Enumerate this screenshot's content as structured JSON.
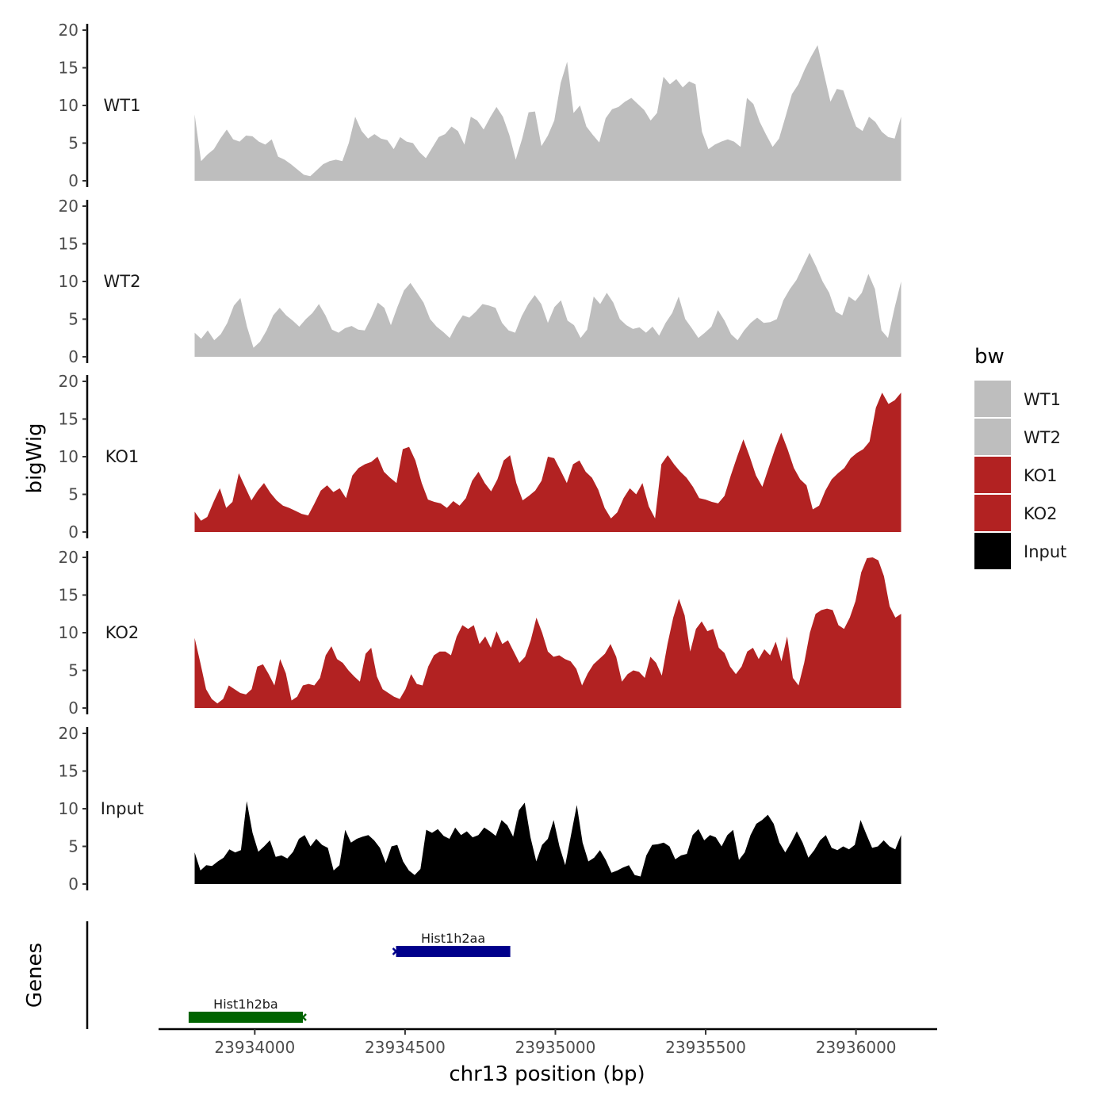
{
  "chart_data": {
    "type": "area",
    "y_title": "bigWig",
    "x_title": "chr13 position (bp)",
    "genes_title": "Genes",
    "x_range": [
      23933680,
      23936270
    ],
    "data_x_range": [
      23933800,
      23936150
    ],
    "x_ticks": [
      23934000,
      23934500,
      23935000,
      23935500,
      23936000
    ],
    "x_tick_labels": [
      "23934000",
      "23934500",
      "23935000",
      "23935500",
      "23936000"
    ],
    "y_range": [
      0,
      20
    ],
    "y_ticks": [
      0,
      5,
      10,
      15,
      20
    ],
    "y_tick_labels": [
      "0",
      "5",
      "10",
      "15",
      "20"
    ],
    "legend": {
      "title": "bw",
      "entries": [
        {
          "label": "WT1",
          "color": "#bebebe"
        },
        {
          "label": "WT2",
          "color": "#bebebe"
        },
        {
          "label": "KO1",
          "color": "#b22222"
        },
        {
          "label": "KO2",
          "color": "#b22222"
        },
        {
          "label": "Input",
          "color": "#000000"
        }
      ]
    },
    "series": [
      {
        "name": "WT1",
        "color": "#bebebe",
        "values": [
          8.8,
          2.6,
          3.5,
          4.2,
          5.6,
          6.8,
          5.5,
          5.2,
          6.0,
          5.9,
          5.2,
          4.8,
          5.5,
          3.2,
          2.8,
          2.2,
          1.5,
          0.8,
          0.6,
          1.4,
          2.2,
          2.6,
          2.8,
          2.6,
          5.0,
          8.5,
          6.6,
          5.6,
          6.2,
          5.6,
          5.4,
          4.2,
          5.8,
          5.2,
          5.0,
          3.8,
          3.0,
          4.4,
          5.8,
          6.2,
          7.2,
          6.6,
          4.8,
          8.5,
          8.0,
          6.8,
          8.4,
          9.8,
          8.5,
          6.1,
          2.8,
          5.6,
          9.1,
          9.2,
          4.6,
          6.0,
          8.0,
          13.0,
          15.8,
          9.0,
          10.0,
          7.2,
          6.1,
          5.1,
          8.3,
          9.5,
          9.8,
          10.5,
          11.0,
          10.2,
          9.4,
          8.0,
          9.0,
          13.8,
          12.8,
          13.5,
          12.4,
          13.2,
          12.8,
          6.5,
          4.2,
          4.8,
          5.2,
          5.5,
          5.2,
          4.5,
          11.0,
          10.2,
          7.8,
          6.1,
          4.5,
          5.6,
          8.5,
          11.5,
          12.8,
          14.8,
          16.5,
          18.0,
          14.2,
          10.5,
          12.2,
          12.0,
          9.5,
          7.2,
          6.6,
          8.5,
          7.8,
          6.5,
          5.8,
          5.6,
          8.5
        ]
      },
      {
        "name": "WT2",
        "color": "#bebebe",
        "values": [
          3.2,
          2.4,
          3.5,
          2.2,
          3.0,
          4.5,
          6.8,
          7.8,
          4.0,
          1.2,
          2.0,
          3.5,
          5.5,
          6.5,
          5.5,
          4.8,
          4.0,
          5.0,
          5.8,
          7.0,
          5.5,
          3.6,
          3.2,
          3.8,
          4.1,
          3.6,
          3.5,
          5.2,
          7.2,
          6.5,
          4.2,
          6.6,
          8.8,
          9.8,
          8.5,
          7.2,
          5.0,
          4.0,
          3.3,
          2.5,
          4.2,
          5.5,
          5.2,
          6.0,
          7.0,
          6.8,
          6.5,
          4.5,
          3.5,
          3.2,
          5.4,
          7.0,
          8.2,
          7.0,
          4.5,
          6.6,
          7.5,
          4.8,
          4.2,
          2.5,
          3.6,
          8.0,
          7.0,
          8.5,
          7.2,
          5.0,
          4.2,
          3.7,
          3.9,
          3.2,
          4.0,
          2.8,
          4.5,
          5.8,
          8.0,
          5.0,
          3.8,
          2.5,
          3.2,
          4.0,
          6.2,
          4.8,
          3.0,
          2.2,
          3.5,
          4.5,
          5.2,
          4.5,
          4.6,
          5.0,
          7.5,
          9.0,
          10.2,
          12.0,
          13.8,
          12.0,
          10.0,
          8.5,
          6.0,
          5.5,
          8.0,
          7.4,
          8.5,
          11.0,
          9.0,
          3.5,
          2.5,
          6.5,
          10.0
        ]
      },
      {
        "name": "KO1",
        "color": "#b22222",
        "values": [
          2.7,
          1.5,
          2.0,
          4.0,
          5.8,
          3.2,
          4.0,
          7.8,
          6.0,
          4.2,
          5.5,
          6.5,
          5.2,
          4.2,
          3.5,
          3.2,
          2.8,
          2.4,
          2.2,
          3.8,
          5.5,
          6.2,
          5.3,
          5.8,
          4.5,
          7.5,
          8.5,
          9.0,
          9.3,
          10.0,
          8.0,
          7.2,
          6.5,
          11.0,
          11.3,
          9.5,
          6.5,
          4.3,
          4.0,
          3.8,
          3.2,
          4.1,
          3.5,
          4.5,
          6.8,
          8.0,
          6.5,
          5.4,
          7.0,
          9.5,
          10.2,
          6.5,
          4.2,
          4.8,
          5.5,
          6.8,
          10.0,
          9.8,
          8.2,
          6.5,
          9.0,
          9.5,
          8.0,
          7.2,
          5.6,
          3.2,
          1.8,
          2.6,
          4.5,
          5.8,
          5.0,
          6.5,
          3.4,
          1.8,
          9.0,
          10.2,
          9.0,
          8.0,
          7.2,
          6.0,
          4.5,
          4.3,
          4.0,
          3.8,
          4.8,
          7.5,
          10.0,
          12.3,
          10.0,
          7.5,
          6.0,
          8.5,
          11.0,
          13.2,
          11.0,
          8.5,
          7.0,
          6.2,
          3.0,
          3.5,
          5.5,
          7.0,
          7.8,
          8.5,
          9.8,
          10.5,
          11.0,
          12.0,
          16.5,
          18.5,
          17.0,
          17.5,
          18.5
        ]
      },
      {
        "name": "KO2",
        "color": "#b22222",
        "values": [
          9.3,
          6.0,
          2.5,
          1.2,
          0.6,
          1.2,
          3.0,
          2.5,
          2.0,
          1.8,
          2.5,
          5.5,
          5.8,
          4.5,
          3.0,
          6.5,
          4.6,
          1.0,
          1.5,
          3.0,
          3.2,
          3.0,
          4.0,
          7.0,
          8.2,
          6.5,
          6.0,
          5.0,
          4.2,
          3.5,
          7.2,
          8.0,
          4.2,
          2.5,
          2.0,
          1.5,
          1.2,
          2.5,
          4.5,
          3.2,
          3.0,
          5.5,
          7.0,
          7.5,
          7.5,
          7.0,
          9.5,
          11.0,
          10.5,
          11.0,
          8.5,
          9.5,
          8.0,
          10.2,
          8.5,
          9.0,
          7.5,
          6.0,
          6.8,
          9.0,
          12.0,
          10.0,
          7.5,
          6.8,
          7.0,
          6.5,
          6.2,
          5.2,
          3.0,
          4.6,
          5.8,
          6.5,
          7.2,
          8.5,
          6.8,
          3.5,
          4.5,
          5.0,
          4.8,
          4.0,
          6.8,
          6.0,
          4.3,
          8.5,
          12.0,
          14.5,
          12.3,
          7.5,
          10.5,
          11.5,
          10.2,
          10.5,
          8.0,
          7.3,
          5.5,
          4.5,
          5.5,
          7.5,
          8.0,
          6.5,
          7.8,
          7.0,
          8.8,
          6.2,
          9.5,
          4.0,
          3.0,
          6.0,
          10.0,
          12.5,
          13.0,
          13.2,
          13.0,
          11.0,
          10.5,
          12.0,
          14.2,
          18.0,
          19.9,
          20.0,
          19.6,
          17.5,
          13.5,
          12.0,
          12.5
        ]
      },
      {
        "name": "Input",
        "color": "#000000",
        "values": [
          4.2,
          1.8,
          2.5,
          2.4,
          3.0,
          3.5,
          4.6,
          4.2,
          4.5,
          11.0,
          6.8,
          4.3,
          5.0,
          5.8,
          3.6,
          3.8,
          3.4,
          4.3,
          6.0,
          6.5,
          5.0,
          6.0,
          5.2,
          4.8,
          1.8,
          2.5,
          7.2,
          5.5,
          6.0,
          6.3,
          6.5,
          5.8,
          4.8,
          2.8,
          5.0,
          5.2,
          3.0,
          1.8,
          1.2,
          2.0,
          7.2,
          6.8,
          7.3,
          6.4,
          6.0,
          7.5,
          6.5,
          7.0,
          6.2,
          6.5,
          7.5,
          7.0,
          6.4,
          8.5,
          7.8,
          6.3,
          9.8,
          10.8,
          6.2,
          3.0,
          5.2,
          6.0,
          8.5,
          5.0,
          2.5,
          6.5,
          10.5,
          5.5,
          3.0,
          3.5,
          4.5,
          3.2,
          1.5,
          1.8,
          2.2,
          2.5,
          1.2,
          1.0,
          3.8,
          5.2,
          5.3,
          5.5,
          5.0,
          3.3,
          3.8,
          4.0,
          6.5,
          7.3,
          5.8,
          6.5,
          6.2,
          5.0,
          6.5,
          7.2,
          3.2,
          4.2,
          6.5,
          8.0,
          8.5,
          9.2,
          8.0,
          5.5,
          4.2,
          5.5,
          7.0,
          5.5,
          3.5,
          4.5,
          5.8,
          6.5,
          4.8,
          4.5,
          5.0,
          4.6,
          5.2,
          8.5,
          6.6,
          4.8,
          5.0,
          5.8,
          5.0,
          4.6,
          6.5
        ]
      }
    ],
    "genes": [
      {
        "name": "Hist1h2aa",
        "start": 23934470,
        "end": 23934850,
        "strand": "-",
        "color": "#00008b",
        "row": 2
      },
      {
        "name": "Hist1h2ba",
        "start": 23933780,
        "end": 23934160,
        "strand": "+",
        "color": "#006400",
        "row": 1
      }
    ]
  }
}
